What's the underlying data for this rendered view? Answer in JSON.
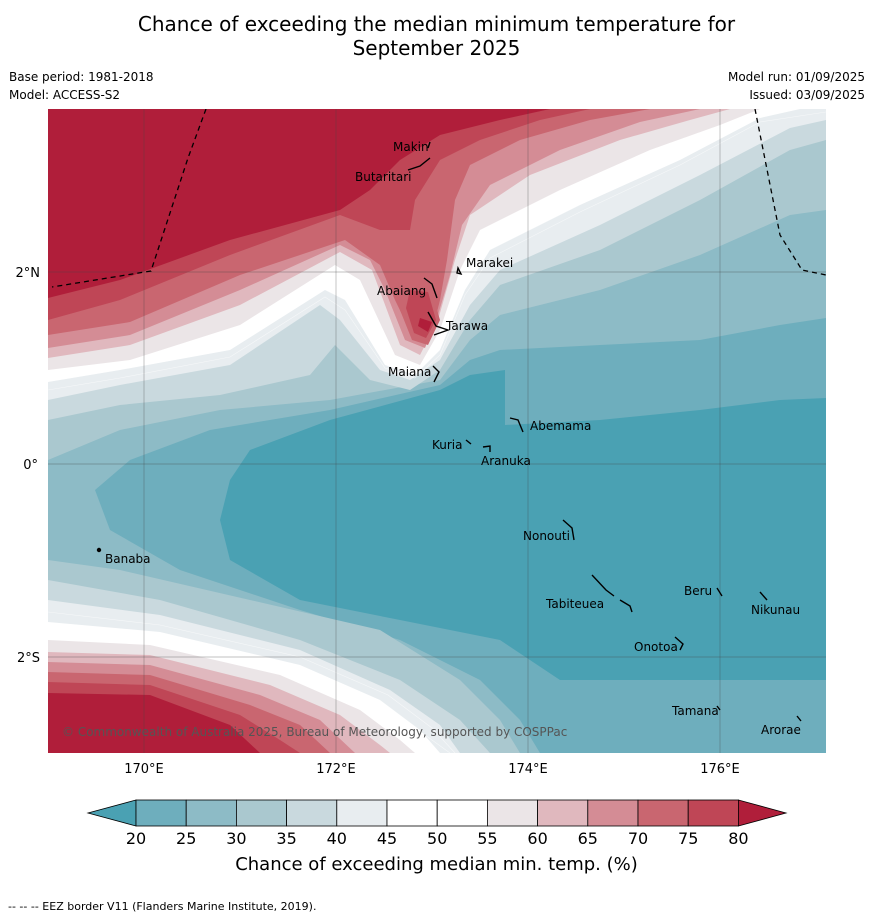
{
  "header": {
    "title_line1": "Chance of exceeding the median minimum temperature for",
    "title_line2": "September 2025",
    "base_period": "Base period: 1981-2018",
    "model": "Model: ACCESS-S2",
    "model_run": "Model run: 01/09/2025",
    "issued": "Issued: 03/09/2025"
  },
  "map": {
    "lon_ticks": [
      "170°E",
      "172°E",
      "174°E",
      "176°E"
    ],
    "lat_ticks": [
      "2°N",
      "0°",
      "2°S"
    ],
    "places": [
      "Makin",
      "Butaritari",
      "Marakei",
      "Abaiang",
      "Tarawa",
      "Maiana",
      "Abemama",
      "Kuria",
      "Aranuka",
      "Banaba",
      "Nonouti",
      "Beru",
      "Tabiteuea",
      "Nikunau",
      "Onotoa",
      "Tamana",
      "Arorae"
    ],
    "copyright": "© Commonwealth of Australia 2025, Bureau of Meteorology, supported by COSPPac"
  },
  "colorbar": {
    "ticks": [
      "20",
      "25",
      "30",
      "35",
      "40",
      "45",
      "50",
      "55",
      "60",
      "65",
      "70",
      "75",
      "80"
    ],
    "colors": [
      "#4aa1b3",
      "#6eaebd",
      "#8dbbc6",
      "#aac8cf",
      "#c9d9de",
      "#e8edf0",
      "#ffffff",
      "#ffffff",
      "#ebe5e7",
      "#e0b8be",
      "#d48c95",
      "#c96670",
      "#bf4656",
      "#b01e3a"
    ],
    "label": "Chance of exceeding median min. temp. (%)"
  },
  "footnote": "--  --  -- EEZ border V11 (Flanders Marine Institute, 2019)."
}
